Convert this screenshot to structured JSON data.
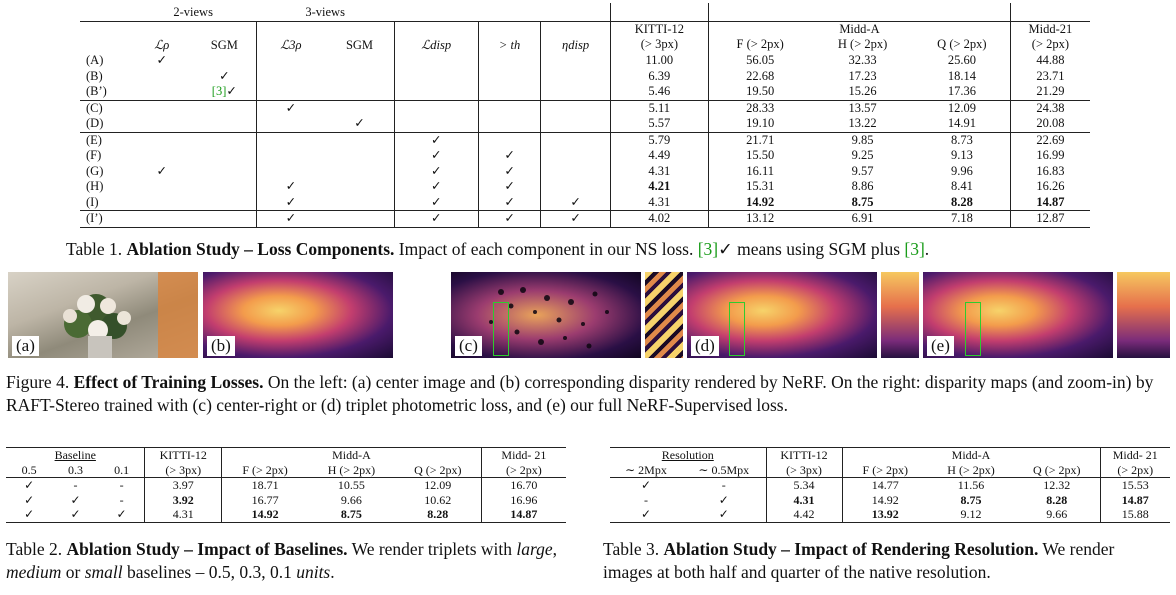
{
  "table1": {
    "group_headers": {
      "two_views": "2-views",
      "three_views": "3-views",
      "kitti": "KITTI-12",
      "midd_a": "Midd-A",
      "midd21": "Midd-21"
    },
    "col_headers": {
      "l_rho": "ℒρ",
      "sgm2": "SGM",
      "l_3rho": "ℒ3ρ",
      "sgm3": "SGM",
      "l_disp": "ℒdisp",
      "gt_th": "> th",
      "eta_disp": "ηdisp",
      "kitti_sub": "(> 3px)",
      "f": "F (> 2px)",
      "h": "H (> 2px)",
      "q": "Q (> 2px)",
      "midd21_sub": "(> 2px)"
    },
    "rows": [
      {
        "label": "(A)",
        "c1": "✓",
        "c2": "",
        "c3": "",
        "c4": "",
        "c5": "",
        "c6": "",
        "c7": "",
        "kitti": "11.00",
        "f": "56.05",
        "h": "32.33",
        "q": "25.60",
        "m21": "44.88"
      },
      {
        "label": "(B)",
        "c1": "",
        "c2": "✓",
        "c3": "",
        "c4": "",
        "c5": "",
        "c6": "",
        "c7": "",
        "kitti": "6.39",
        "f": "22.68",
        "h": "17.23",
        "q": "18.14",
        "m21": "23.71"
      },
      {
        "label": "(B’)",
        "c1": "",
        "c2": "[3]✓",
        "c3": "",
        "c4": "",
        "c5": "",
        "c6": "",
        "c7": "",
        "kitti": "5.46",
        "f": "19.50",
        "h": "15.26",
        "q": "17.36",
        "m21": "21.29"
      },
      {
        "label": "(C)",
        "c1": "",
        "c2": "",
        "c3": "✓",
        "c4": "",
        "c5": "",
        "c6": "",
        "c7": "",
        "kitti": "5.11",
        "f": "28.33",
        "h": "13.57",
        "q": "12.09",
        "m21": "24.38"
      },
      {
        "label": "(D)",
        "c1": "",
        "c2": "",
        "c3": "",
        "c4": "✓",
        "c5": "",
        "c6": "",
        "c7": "",
        "kitti": "5.57",
        "f": "19.10",
        "h": "13.22",
        "q": "14.91",
        "m21": "20.08"
      },
      {
        "label": "(E)",
        "c1": "",
        "c2": "",
        "c3": "",
        "c4": "",
        "c5": "✓",
        "c6": "",
        "c7": "",
        "kitti": "5.79",
        "f": "21.71",
        "h": "9.85",
        "q": "8.73",
        "m21": "22.69"
      },
      {
        "label": "(F)",
        "c1": "",
        "c2": "",
        "c3": "",
        "c4": "",
        "c5": "✓",
        "c6": "✓",
        "c7": "",
        "kitti": "4.49",
        "f": "15.50",
        "h": "9.25",
        "q": "9.13",
        "m21": "16.99"
      },
      {
        "label": "(G)",
        "c1": "✓",
        "c2": "",
        "c3": "",
        "c4": "",
        "c5": "✓",
        "c6": "✓",
        "c7": "",
        "kitti": "4.31",
        "f": "16.11",
        "h": "9.57",
        "q": "9.96",
        "m21": "16.83"
      },
      {
        "label": "(H)",
        "c1": "",
        "c2": "",
        "c3": "✓",
        "c4": "",
        "c5": "✓",
        "c6": "✓",
        "c7": "",
        "kitti": "4.21",
        "f": "15.31",
        "h": "8.86",
        "q": "8.41",
        "m21": "16.26"
      },
      {
        "label": "(I)",
        "c1": "",
        "c2": "",
        "c3": "✓",
        "c4": "",
        "c5": "✓",
        "c6": "✓",
        "c7": "✓",
        "kitti": "4.31",
        "f": "14.92",
        "h": "8.75",
        "q": "8.28",
        "m21": "14.87"
      },
      {
        "label": "(I’)",
        "c1": "",
        "c2": "",
        "c3": "✓",
        "c4": "",
        "c5": "✓",
        "c6": "✓",
        "c7": "✓",
        "kitti": "4.02",
        "f": "13.12",
        "h": "6.91",
        "q": "7.18",
        "m21": "12.87"
      }
    ],
    "caption": {
      "prefix": "Table 1. ",
      "bold": "Ablation Study – Loss Components.",
      "text_a": " Impact of each component in our NS loss. ",
      "cite1": "[3]",
      "text_b": "✓ means using SGM plus ",
      "cite2": "[3]",
      "text_c": "."
    }
  },
  "figure4": {
    "labels": {
      "a": "(a)",
      "b": "(b)",
      "c": "(c)",
      "d": "(d)",
      "e": "(e)"
    },
    "caption": {
      "prefix": "Figure 4. ",
      "bold": "Effect of Training Losses.",
      "text": " On the left: (a) center image and (b) corresponding disparity rendered by NeRF. On the right: disparity maps (and zoom-in) by RAFT-Stereo trained with (c) center-right or (d) triplet photometric loss, and (e) our full NeRF-Supervised loss."
    }
  },
  "table2": {
    "headers": {
      "baseline": "Baseline",
      "b05": "0.5",
      "b03": "0.3",
      "b01": "0.1",
      "kitti": "KITTI-12",
      "kitti_sub": "(> 3px)",
      "midd_a": "Midd-A",
      "f": "F (> 2px)",
      "h": "H (> 2px)",
      "q": "Q (> 2px)",
      "midd21": "Midd- 21",
      "midd21_sub": "(> 2px)"
    },
    "rows": [
      {
        "b05": "✓",
        "b03": "-",
        "b01": "-",
        "kitti": "3.97",
        "f": "18.71",
        "h": "10.55",
        "q": "12.09",
        "m21": "16.70"
      },
      {
        "b05": "✓",
        "b03": "✓",
        "b01": "-",
        "kitti": "3.92",
        "f": "16.77",
        "h": "9.66",
        "q": "10.62",
        "m21": "16.96"
      },
      {
        "b05": "✓",
        "b03": "✓",
        "b01": "✓",
        "kitti": "4.31",
        "f": "14.92",
        "h": "8.75",
        "q": "8.28",
        "m21": "14.87"
      }
    ],
    "caption": {
      "prefix": "Table 2. ",
      "bold": "Ablation Study – Impact of Baselines.",
      "text_a": " We render triplets with ",
      "large": "large",
      "sep1": ", ",
      "medium": "medium",
      "sep2": " or ",
      "small": "small",
      "text_b": " baselines – 0.5, 0.3, 0.1 ",
      "units": "units",
      "text_c": "."
    }
  },
  "table3": {
    "headers": {
      "resolution": "Resolution",
      "r2": "∼ 2Mpx",
      "r05": "∼ 0.5Mpx",
      "kitti": "KITTI-12",
      "kitti_sub": "(> 3px)",
      "midd_a": "Midd-A",
      "f": "F (> 2px)",
      "h": "H (> 2px)",
      "q": "Q (> 2px)",
      "midd21": "Midd- 21",
      "midd21_sub": "(> 2px)"
    },
    "rows": [
      {
        "r2": "✓",
        "r05": "-",
        "kitti": "5.34",
        "f": "14.77",
        "h": "11.56",
        "q": "12.32",
        "m21": "15.53"
      },
      {
        "r2": "-",
        "r05": "✓",
        "kitti": "4.31",
        "f": "14.92",
        "h": "8.75",
        "q": "8.28",
        "m21": "14.87"
      },
      {
        "r2": "✓",
        "r05": "✓",
        "kitti": "4.42",
        "f": "13.92",
        "h": "9.12",
        "q": "9.66",
        "m21": "15.88"
      }
    ],
    "caption": {
      "prefix": "Table 3. ",
      "bold": "Ablation Study – Impact of Rendering Resolution.",
      "text": " We render images at both half and quarter of the native resolution."
    }
  }
}
